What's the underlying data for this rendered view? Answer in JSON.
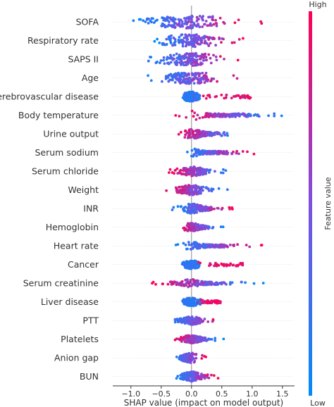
{
  "chart_data": {
    "type": "scatter",
    "subtype": "shap-beeswarm",
    "xlabel": "SHAP value (impact on model output)",
    "xlim": [
      -1.3,
      1.7
    ],
    "xticks": [
      "−1.0",
      "−0.5",
      "0.0",
      "0.5",
      "1.0",
      "1.5"
    ],
    "xtick_values": [
      -1.0,
      -0.5,
      0.0,
      0.5,
      1.0,
      1.5
    ],
    "zero_line": true,
    "colorbar": {
      "label": "Feature value",
      "high": "High",
      "low": "Low",
      "low_color": "#008bfb",
      "high_color": "#ff0052"
    },
    "features": [
      {
        "name": "SOFA",
        "min": -1.15,
        "max": 1.2,
        "width": 9,
        "low_side": "neg",
        "spread": 0.55
      },
      {
        "name": "Respiratory rate",
        "min": -0.72,
        "max": 0.92,
        "width": 9,
        "low_side": "neg",
        "spread": 0.4
      },
      {
        "name": "SAPS II",
        "min": -0.75,
        "max": 0.8,
        "width": 9,
        "low_side": "neg",
        "spread": 0.4
      },
      {
        "name": "Age",
        "min": -0.72,
        "max": 0.82,
        "width": 8,
        "low_side": "neg",
        "spread": 0.38
      },
      {
        "name": "Cerebrovascular disease",
        "min": -0.12,
        "max": 1.0,
        "width": 7,
        "low_side": "neg",
        "spread": 0.05,
        "high_cluster": [
          0.15,
          1.0
        ]
      },
      {
        "name": "Body temperature",
        "min": -0.28,
        "max": 1.6,
        "width": 7,
        "low_side": "pos",
        "spread": 0.12
      },
      {
        "name": "Urine output",
        "min": -0.28,
        "max": 0.85,
        "width": 7,
        "low_side": "pos",
        "spread": 0.12
      },
      {
        "name": "Serum sodium",
        "min": -0.22,
        "max": 1.05,
        "width": 6,
        "low_side": "neg",
        "spread": 0.08
      },
      {
        "name": "Serum chloride",
        "min": -0.38,
        "max": 0.62,
        "width": 7,
        "low_side": "pos",
        "spread": 0.15
      },
      {
        "name": "Weight",
        "min": -0.45,
        "max": 0.6,
        "width": 7,
        "low_side": "pos",
        "spread": 0.15
      },
      {
        "name": "INR",
        "min": -0.32,
        "max": 0.68,
        "width": 7,
        "low_side": "neg",
        "spread": 0.12
      },
      {
        "name": "Hemoglobin",
        "min": -0.22,
        "max": 0.55,
        "width": 6,
        "low_side": "pos",
        "spread": 0.1
      },
      {
        "name": "Heart rate",
        "min": -0.35,
        "max": 1.2,
        "width": 6,
        "low_side": "neg",
        "spread": 0.08
      },
      {
        "name": "Cancer",
        "min": -0.12,
        "max": 0.85,
        "width": 6,
        "low_side": "neg",
        "spread": 0.05,
        "high_cluster": [
          0.05,
          0.85
        ]
      },
      {
        "name": "Serum creatinine",
        "min": -0.75,
        "max": 1.2,
        "width": 6,
        "low_side": "pos",
        "spread": 0.1
      },
      {
        "name": "Liver disease",
        "min": -0.1,
        "max": 0.48,
        "width": 6,
        "low_side": "neg",
        "spread": 0.05,
        "high_cluster": [
          0.05,
          0.48
        ]
      },
      {
        "name": "PTT",
        "min": -0.38,
        "max": 0.5,
        "width": 6,
        "low_side": "neg",
        "spread": 0.1
      },
      {
        "name": "Platelets",
        "min": -0.35,
        "max": 0.58,
        "width": 6,
        "low_side": "pos",
        "spread": 0.1
      },
      {
        "name": "Anion gap",
        "min": -0.32,
        "max": 0.25,
        "width": 7,
        "low_side": "neg",
        "spread": 0.1
      },
      {
        "name": "BUN",
        "min": -0.32,
        "max": 0.45,
        "width": 7,
        "low_side": "neg",
        "spread": 0.1
      }
    ]
  }
}
